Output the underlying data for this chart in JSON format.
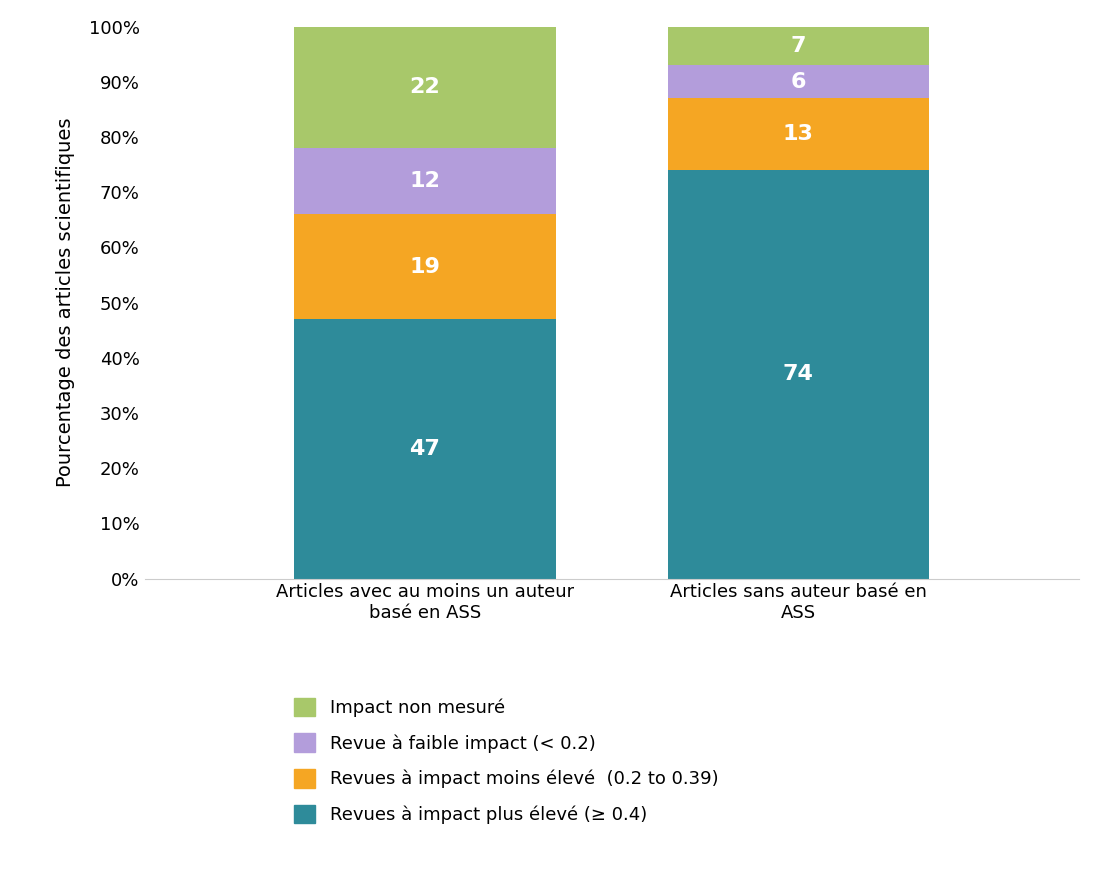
{
  "categories": [
    "Articles avec au moins un auteur\nbasé en ASS",
    "Articles sans auteur basé en\nASS"
  ],
  "series": [
    {
      "label": "Revues à impact plus élevé (≥ 0.4)",
      "values": [
        47,
        74
      ],
      "color": "#2e8b9a"
    },
    {
      "label": "Revues à impact moins élevé  (0.2 to 0.39)",
      "values": [
        19,
        13
      ],
      "color": "#f5a623"
    },
    {
      "label": "Revue à faible impact (< 0.2)",
      "values": [
        12,
        6
      ],
      "color": "#b39ddb"
    },
    {
      "label": "Impact non mesuré",
      "values": [
        22,
        7
      ],
      "color": "#a8c86a"
    }
  ],
  "ylabel": "Pourcentage des articles scientifiques",
  "ylim": [
    0,
    100
  ],
  "yticks": [
    0,
    10,
    20,
    30,
    40,
    50,
    60,
    70,
    80,
    90,
    100
  ],
  "ytick_labels": [
    "0%",
    "10%",
    "20%",
    "30%",
    "40%",
    "50%",
    "60%",
    "70%",
    "80%",
    "90%",
    "100%"
  ],
  "bar_width": 0.28,
  "x_positions": [
    0.3,
    0.7
  ],
  "xlim": [
    0.0,
    1.0
  ],
  "label_color": "#ffffff",
  "label_fontsize": 16,
  "ylabel_fontsize": 14,
  "tick_fontsize": 13,
  "legend_fontsize": 13,
  "background_color": "#ffffff"
}
